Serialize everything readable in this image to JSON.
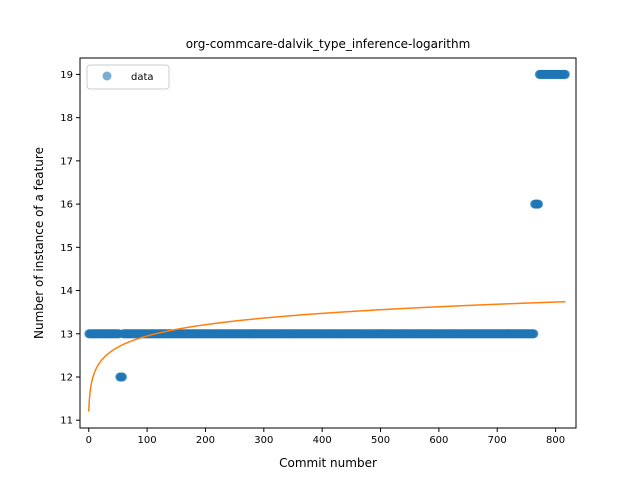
{
  "chart_data": {
    "type": "scatter",
    "title": "org-commcare-dalvik_type_inference-logarithm",
    "xlabel": "Commit number",
    "ylabel": "Number of instance of a feature",
    "xlim": [
      -15,
      835
    ],
    "ylim": [
      10.82,
      19.38
    ],
    "xticks": [
      0,
      100,
      200,
      300,
      400,
      500,
      600,
      700,
      800
    ],
    "yticks": [
      11,
      12,
      13,
      14,
      15,
      16,
      17,
      18,
      19
    ],
    "legend": {
      "position": "upper-left",
      "entries": [
        "data"
      ]
    },
    "colors": {
      "data": "#1f77b4",
      "fit": "#ff7f0e"
    },
    "data_series": {
      "name": "data",
      "marker": "circle",
      "alpha": 0.6,
      "segments": [
        {
          "x_start": 0,
          "x_end": 52,
          "y": 13
        },
        {
          "x_start": 53,
          "x_end": 58,
          "y": 12
        },
        {
          "x_start": 59,
          "x_end": 763,
          "y": 13
        },
        {
          "x_start": 764,
          "x_end": 771,
          "y": 16
        },
        {
          "x_start": 772,
          "x_end": 817,
          "y": 19
        }
      ]
    },
    "fit_series": {
      "type": "line",
      "formula": "y = a + b*ln(x+1)",
      "a": 11.2,
      "b": 0.379,
      "x_range": [
        0,
        817
      ]
    }
  }
}
